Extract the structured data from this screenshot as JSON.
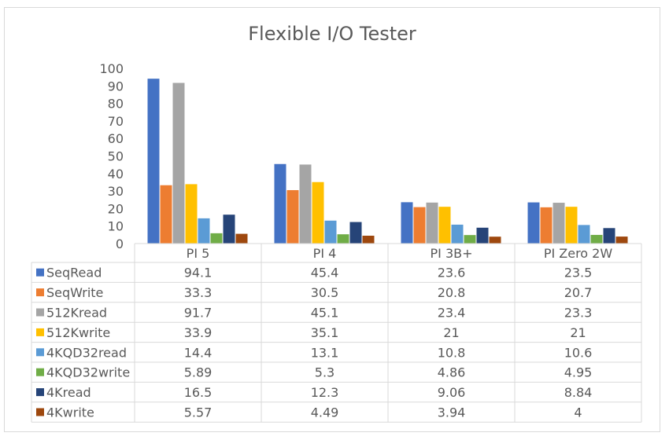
{
  "chart_data": {
    "type": "bar",
    "title": "Flexible I/O Tester",
    "categories": [
      "PI 5",
      "PI 4",
      "PI 3B+",
      "PI Zero 2W"
    ],
    "ylim": [
      0,
      100
    ],
    "yticks": [
      0,
      10,
      20,
      30,
      40,
      50,
      60,
      70,
      80,
      90,
      100
    ],
    "grid": false,
    "legend": "data-table",
    "series": [
      {
        "name": "SeqRead",
        "color": "#4472C4",
        "values": [
          94.1,
          45.4,
          23.6,
          23.5
        ]
      },
      {
        "name": "SeqWrite",
        "color": "#ED7D31",
        "values": [
          33.3,
          30.5,
          20.8,
          20.7
        ]
      },
      {
        "name": "512Kread",
        "color": "#A5A5A5",
        "values": [
          91.7,
          45.1,
          23.4,
          23.3
        ]
      },
      {
        "name": "512Kwrite",
        "color": "#FFC000",
        "values": [
          33.9,
          35.1,
          21,
          21
        ]
      },
      {
        "name": "4KQD32read",
        "color": "#5B9BD5",
        "values": [
          14.4,
          13.1,
          10.8,
          10.6
        ]
      },
      {
        "name": "4KQD32write",
        "color": "#70AD47",
        "values": [
          5.89,
          5.3,
          4.86,
          4.95
        ]
      },
      {
        "name": "4Kread",
        "color": "#264478",
        "values": [
          16.5,
          12.3,
          9.06,
          8.84
        ]
      },
      {
        "name": "4Kwrite",
        "color": "#9E480E",
        "values": [
          5.57,
          4.49,
          3.94,
          4
        ]
      }
    ]
  }
}
